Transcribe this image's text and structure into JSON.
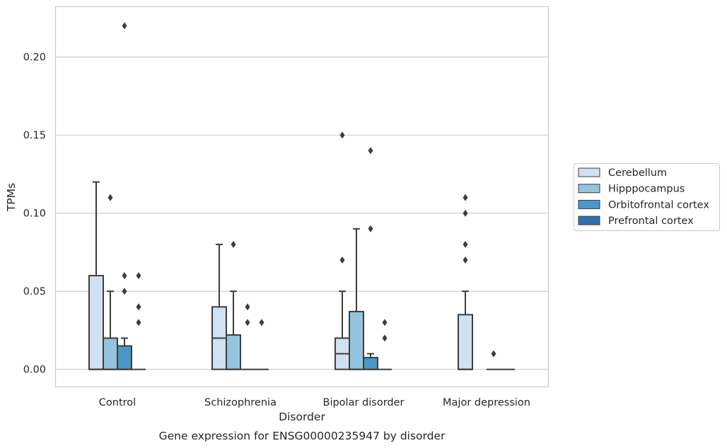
{
  "chart_data": {
    "type": "box",
    "caption": "Gene expression for ENSG00000235947 by disorder",
    "xlabel": "Disorder",
    "ylabel": "TPMs",
    "ylim": [
      -0.011,
      0.232
    ],
    "yticks": [
      "0.00",
      "0.05",
      "0.10",
      "0.15",
      "0.20"
    ],
    "grid": "horizontal",
    "legend_position": "right",
    "categories": [
      "Control",
      "Schizophrenia",
      "Bipolar disorder",
      "Major depression"
    ],
    "series": [
      {
        "name": "Cerebellum",
        "color": "#d0e1f2",
        "boxes": [
          {
            "q1": 0.0,
            "median": 0.0,
            "q3": 0.06,
            "whisker_low": 0.0,
            "whisker_high": 0.12,
            "outliers": []
          },
          {
            "q1": 0.0,
            "median": 0.02,
            "q3": 0.04,
            "whisker_low": 0.0,
            "whisker_high": 0.08,
            "outliers": []
          },
          {
            "q1": 0.0,
            "median": 0.01,
            "q3": 0.02,
            "whisker_low": 0.0,
            "whisker_high": 0.05,
            "outliers": [
              0.07,
              0.15
            ]
          },
          {
            "q1": 0.0,
            "median": 0.0,
            "q3": 0.035,
            "whisker_low": 0.0,
            "whisker_high": 0.05,
            "outliers": [
              0.07,
              0.08,
              0.1,
              0.11
            ]
          }
        ]
      },
      {
        "name": "Hipppocampus",
        "color": "#94c4df",
        "boxes": [
          {
            "q1": 0.0,
            "median": 0.0,
            "q3": 0.02,
            "whisker_low": 0.0,
            "whisker_high": 0.05,
            "outliers": [
              0.11
            ]
          },
          {
            "q1": 0.0,
            "median": 0.0,
            "q3": 0.022,
            "whisker_low": 0.0,
            "whisker_high": 0.05,
            "outliers": [
              0.08
            ]
          },
          {
            "q1": 0.0,
            "median": 0.0,
            "q3": 0.037,
            "whisker_low": 0.0,
            "whisker_high": 0.09,
            "outliers": []
          },
          null
        ]
      },
      {
        "name": "Orbitofrontal cortex",
        "color": "#4a98c9",
        "boxes": [
          {
            "q1": 0.0,
            "median": 0.0,
            "q3": 0.015,
            "whisker_low": 0.0,
            "whisker_high": 0.02,
            "outliers": [
              0.05,
              0.06,
              0.22
            ]
          },
          {
            "q1": 0.0,
            "median": 0.0,
            "q3": 0.0,
            "whisker_low": 0.0,
            "whisker_high": 0.0,
            "outliers": [
              0.03,
              0.04
            ]
          },
          {
            "q1": 0.0,
            "median": 0.0,
            "q3": 0.0075,
            "whisker_low": 0.0,
            "whisker_high": 0.01,
            "outliers": [
              0.09,
              0.14
            ]
          },
          {
            "q1": 0.0,
            "median": 0.0,
            "q3": 0.0,
            "whisker_low": 0.0,
            "whisker_high": 0.0,
            "outliers": [
              0.01
            ]
          }
        ]
      },
      {
        "name": "Prefrontal cortex",
        "color": "#2e6fb0",
        "boxes": [
          {
            "q1": 0.0,
            "median": 0.0,
            "q3": 0.0,
            "whisker_low": 0.0,
            "whisker_high": 0.0,
            "outliers": [
              0.03,
              0.04,
              0.06
            ]
          },
          {
            "q1": 0.0,
            "median": 0.0,
            "q3": 0.0,
            "whisker_low": 0.0,
            "whisker_high": 0.0,
            "outliers": [
              0.03
            ]
          },
          {
            "q1": 0.0,
            "median": 0.0,
            "q3": 0.0,
            "whisker_low": 0.0,
            "whisker_high": 0.0,
            "outliers": [
              0.02,
              0.03
            ]
          },
          {
            "q1": 0.0,
            "median": 0.0,
            "q3": 0.0,
            "whisker_low": 0.0,
            "whisker_high": 0.0,
            "outliers": []
          }
        ]
      }
    ]
  }
}
